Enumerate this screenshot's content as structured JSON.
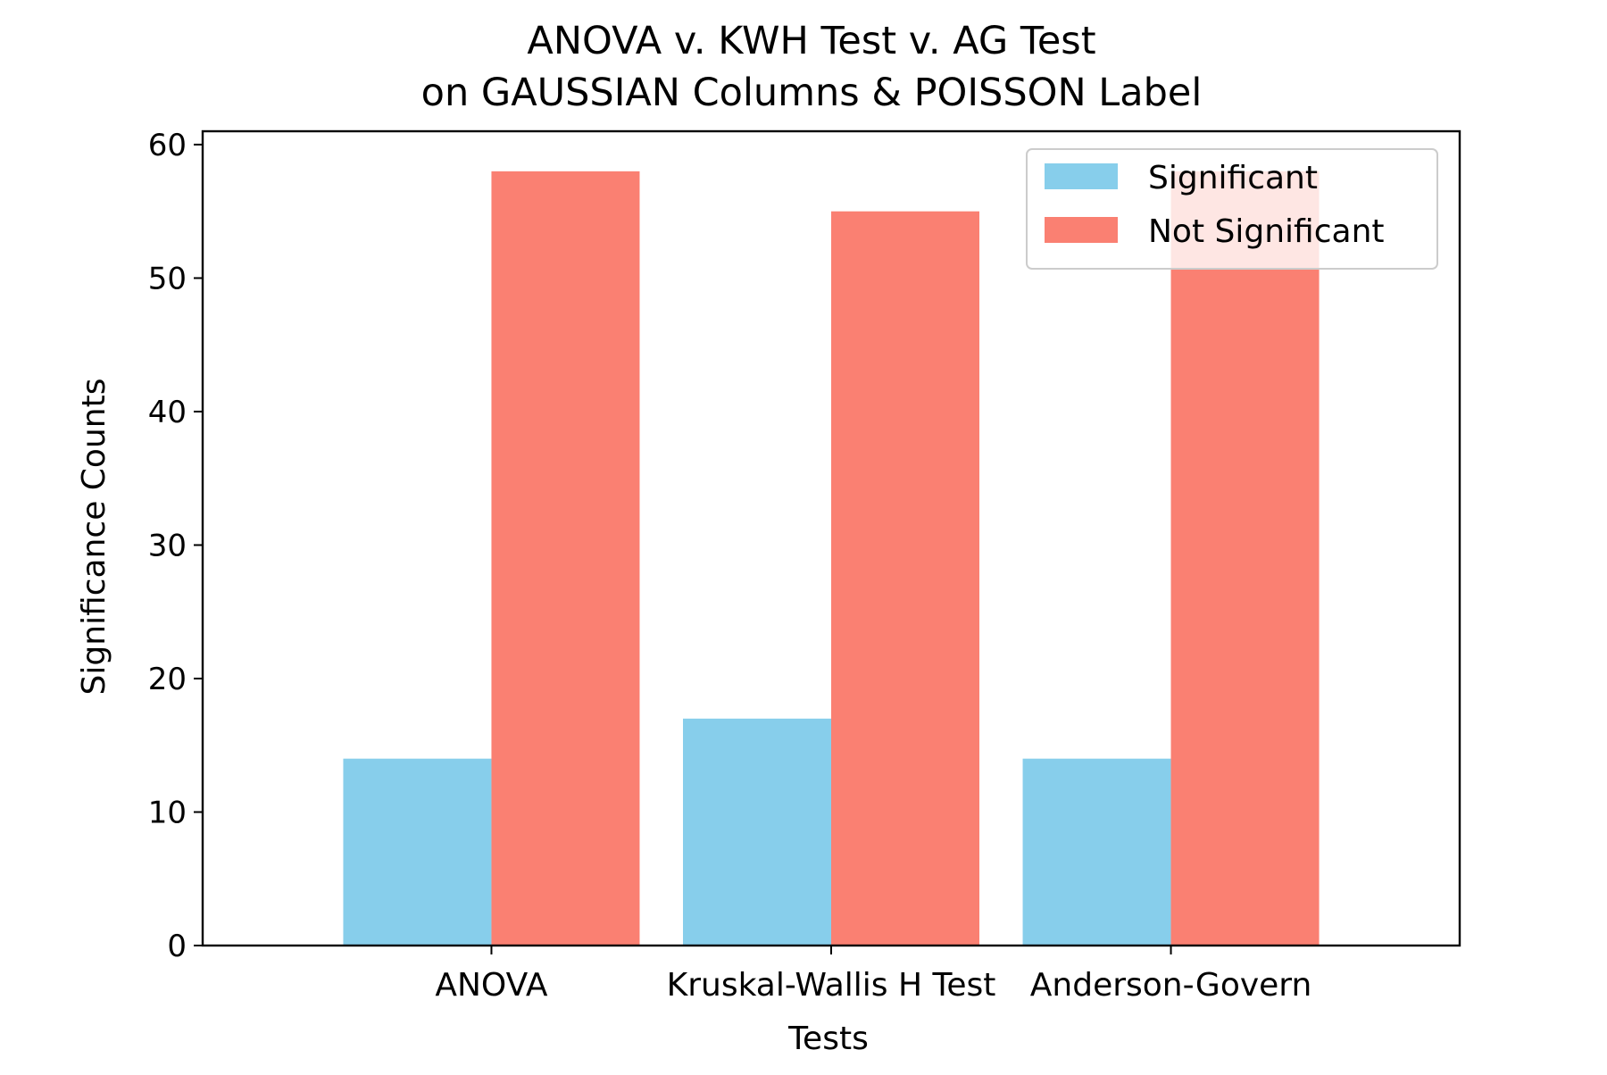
{
  "chart_data": {
    "type": "bar",
    "title_lines": [
      "ANOVA v. KWH Test v. AG Test",
      "on GAUSSIAN Columns & POISSON Label"
    ],
    "xlabel": "Tests",
    "ylabel": "Significance Counts",
    "categories": [
      "ANOVA",
      "Kruskal-Wallis H Test",
      "Anderson-Govern"
    ],
    "series": [
      {
        "name": "Significant",
        "values": [
          14,
          17,
          14
        ],
        "color": "#87CEEB"
      },
      {
        "name": "Not Significant",
        "values": [
          58,
          55,
          58
        ],
        "color": "#FA8072"
      }
    ],
    "ylim": [
      0,
      61
    ],
    "yticks": [
      0,
      10,
      20,
      30,
      40,
      50,
      60
    ],
    "grid": false,
    "legend_position": "top-right"
  }
}
